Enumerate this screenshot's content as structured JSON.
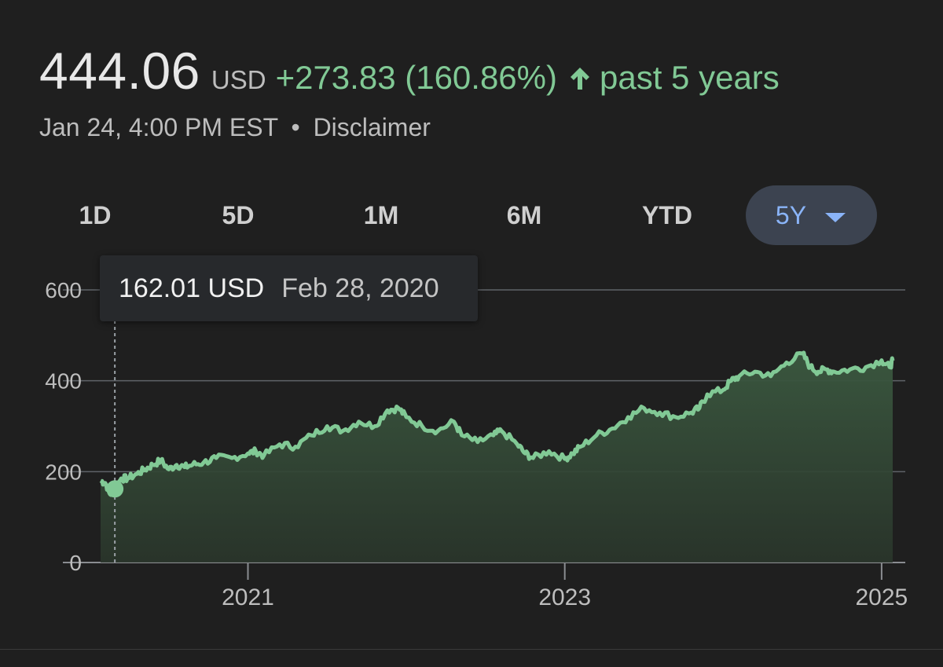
{
  "quote": {
    "price": "444.06",
    "currency": "USD",
    "change": "+273.83 (160.86%)",
    "period": "past 5 years",
    "timestamp": "Jan 24, 4:00 PM EST",
    "separator": "•",
    "disclaimer": "Disclaimer"
  },
  "range_tabs": [
    {
      "label": "1D"
    },
    {
      "label": "5D"
    },
    {
      "label": "1M"
    },
    {
      "label": "6M"
    },
    {
      "label": "YTD"
    },
    {
      "label": "5Y",
      "active": true
    }
  ],
  "tooltip": {
    "value": "162.01 USD",
    "date": "Feb 28, 2020"
  },
  "colors": {
    "line": "#81c995",
    "up": "#81c995",
    "active_tab_text": "#8ab4f8",
    "active_tab_bg": "#3c4350",
    "grid": "#5f6368"
  },
  "icons": {
    "change_arrow": "arrow-up-icon",
    "dropdown": "caret-down-icon"
  },
  "chart_data": {
    "type": "area",
    "title": "",
    "xlabel": "",
    "ylabel": "",
    "ylim": [
      0,
      600
    ],
    "yticks": [
      0,
      200,
      400,
      600
    ],
    "xticks": [
      2021,
      2023,
      2025
    ],
    "xlim": [
      2020.07,
      2025.07
    ],
    "grid": true,
    "series": [
      {
        "x": [
          2020.07,
          2020.1,
          2020.13,
          2020.16,
          2020.2,
          2020.24,
          2020.3,
          2020.35,
          2020.4,
          2020.45,
          2020.5,
          2020.55,
          2020.6,
          2020.65,
          2020.72,
          2020.8,
          2020.9,
          2021.0,
          2021.05,
          2021.1,
          2021.2,
          2021.3,
          2021.4,
          2021.5,
          2021.6,
          2021.7,
          2021.8,
          2021.88,
          2021.95,
          2022.0,
          2022.1,
          2022.2,
          2022.3,
          2022.35,
          2022.45,
          2022.55,
          2022.6,
          2022.7,
          2022.75,
          2022.8,
          2022.9,
          2023.0,
          2023.05,
          2023.1,
          2023.2,
          2023.3,
          2023.4,
          2023.5,
          2023.6,
          2023.7,
          2023.8,
          2023.85,
          2023.9,
          2024.0,
          2024.05,
          2024.1,
          2024.2,
          2024.3,
          2024.4,
          2024.5,
          2024.55,
          2024.6,
          2024.65,
          2024.7,
          2024.8,
          2024.9,
          2025.0,
          2025.05,
          2025.07
        ],
        "values": [
          180,
          175,
          150,
          162,
          185,
          185,
          195,
          205,
          215,
          225,
          205,
          215,
          210,
          215,
          220,
          230,
          230,
          240,
          245,
          235,
          260,
          255,
          280,
          300,
          290,
          310,
          300,
          335,
          340,
          320,
          300,
          290,
          310,
          280,
          265,
          280,
          290,
          260,
          240,
          230,
          245,
          228,
          240,
          255,
          280,
          295,
          320,
          340,
          330,
          320,
          330,
          340,
          370,
          380,
          400,
          410,
          420,
          410,
          440,
          460,
          430,
          420,
          425,
          420,
          425,
          430,
          445,
          430,
          444
        ]
      }
    ],
    "highlight_point": {
      "x": 2020.16,
      "y": 162.01
    }
  }
}
